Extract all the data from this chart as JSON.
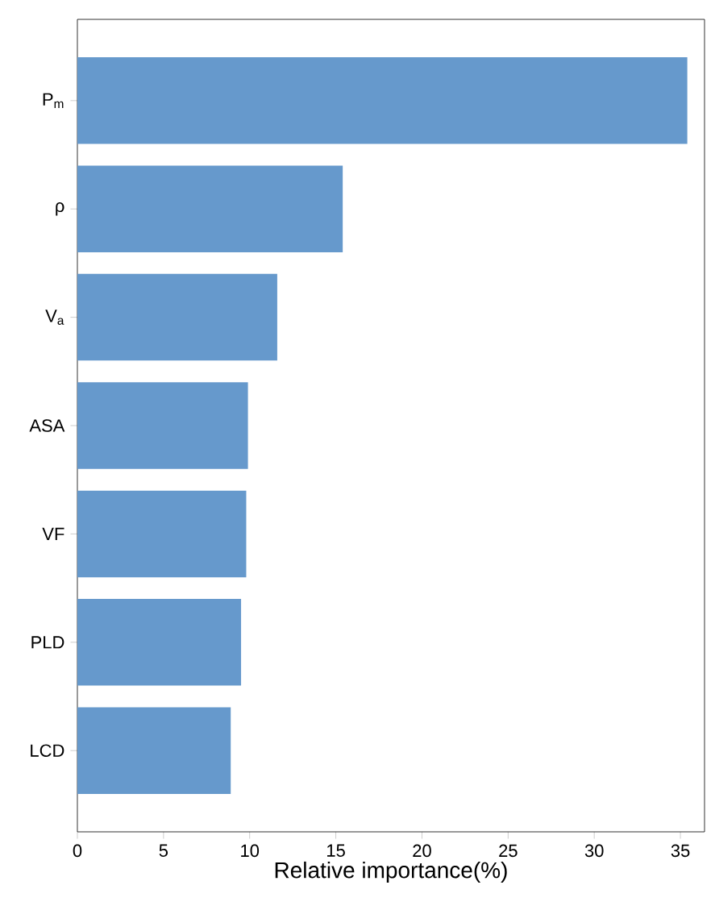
{
  "chart_data": {
    "type": "bar",
    "orientation": "horizontal",
    "xlabel": "Relative importance(%)",
    "categories": [
      "P$_{m}$",
      "ρ",
      "V$_{a}$",
      "ASA",
      "VF",
      "PLD",
      "LCD"
    ],
    "values": [
      35.4,
      15.4,
      11.6,
      9.9,
      9.8,
      9.5,
      8.9
    ],
    "color": "#6699cc",
    "xlim": [
      0,
      36.4
    ],
    "xticks": [
      0,
      5,
      10,
      15,
      20,
      25,
      30,
      35
    ]
  }
}
